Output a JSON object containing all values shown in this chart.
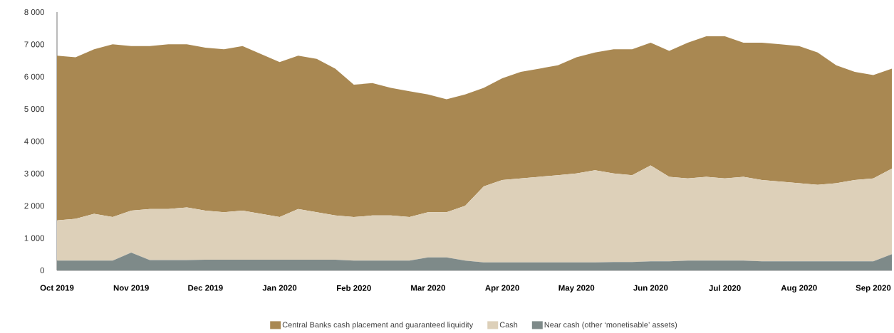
{
  "chart_data": {
    "type": "area",
    "stacked": true,
    "legend": "bottom",
    "categories": [
      "Oct 2019",
      null,
      null,
      null,
      "Nov 2019",
      null,
      null,
      null,
      "Dec 2019",
      null,
      null,
      null,
      "Jan 2020",
      null,
      null,
      null,
      "Feb 2020",
      null,
      null,
      null,
      "Mar 2020",
      null,
      null,
      null,
      "Apr 2020",
      null,
      null,
      null,
      "May 2020",
      null,
      null,
      null,
      "Jun 2020",
      null,
      null,
      null,
      "Jul 2020",
      null,
      null,
      null,
      "Aug 2020",
      null,
      null,
      null,
      "Sep 2020",
      null
    ],
    "ylim": [
      0,
      8000
    ],
    "yticks": [
      0,
      {
        "value": 1000,
        "label": "1 000"
      },
      {
        "value": 2000,
        "label": "2 000"
      },
      {
        "value": 3000,
        "label": "3 000"
      },
      {
        "value": 4000,
        "label": "4 000"
      },
      {
        "value": 5000,
        "label": "5 000"
      },
      {
        "value": 6000,
        "label": "6 000"
      },
      {
        "value": 7000,
        "label": "7 000"
      },
      {
        "value": 8000,
        "label": "8 000"
      }
    ],
    "series": [
      {
        "name": "Near cash (other ‘monetisable’ assets)",
        "color": "#7e8a89",
        "values": [
          300,
          300,
          300,
          300,
          550,
          320,
          320,
          320,
          330,
          330,
          330,
          330,
          330,
          330,
          330,
          330,
          300,
          300,
          300,
          300,
          400,
          400,
          300,
          250,
          250,
          250,
          250,
          250,
          250,
          250,
          260,
          260,
          280,
          280,
          300,
          300,
          300,
          300,
          280,
          280,
          280,
          280,
          280,
          280,
          280,
          500
        ]
      },
      {
        "name": "Cash",
        "color": "#ddd0b9",
        "values": [
          1250,
          1300,
          1450,
          1350,
          1300,
          1580,
          1580,
          1630,
          1520,
          1470,
          1520,
          1420,
          1320,
          1570,
          1470,
          1370,
          1350,
          1400,
          1400,
          1350,
          1400,
          1400,
          1700,
          2350,
          2550,
          2600,
          2650,
          2700,
          2750,
          2850,
          2740,
          2690,
          2970,
          2620,
          2550,
          2600,
          2550,
          2600,
          2520,
          2470,
          2420,
          2370,
          2420,
          2520,
          2570,
          2650
        ]
      },
      {
        "name": "Central Banks cash placement and guaranteed liquidity",
        "color": "#a98852",
        "values": [
          5100,
          5000,
          5100,
          5350,
          5100,
          5050,
          5100,
          5050,
          5050,
          5050,
          5100,
          4950,
          4800,
          4750,
          4750,
          4550,
          4100,
          4100,
          3950,
          3900,
          3650,
          3500,
          3450,
          3050,
          3150,
          3300,
          3350,
          3400,
          3600,
          3650,
          3850,
          3900,
          3800,
          3900,
          4200,
          4350,
          4400,
          4150,
          4250,
          4250,
          4250,
          4100,
          3650,
          3350,
          3200,
          3100
        ]
      }
    ]
  }
}
